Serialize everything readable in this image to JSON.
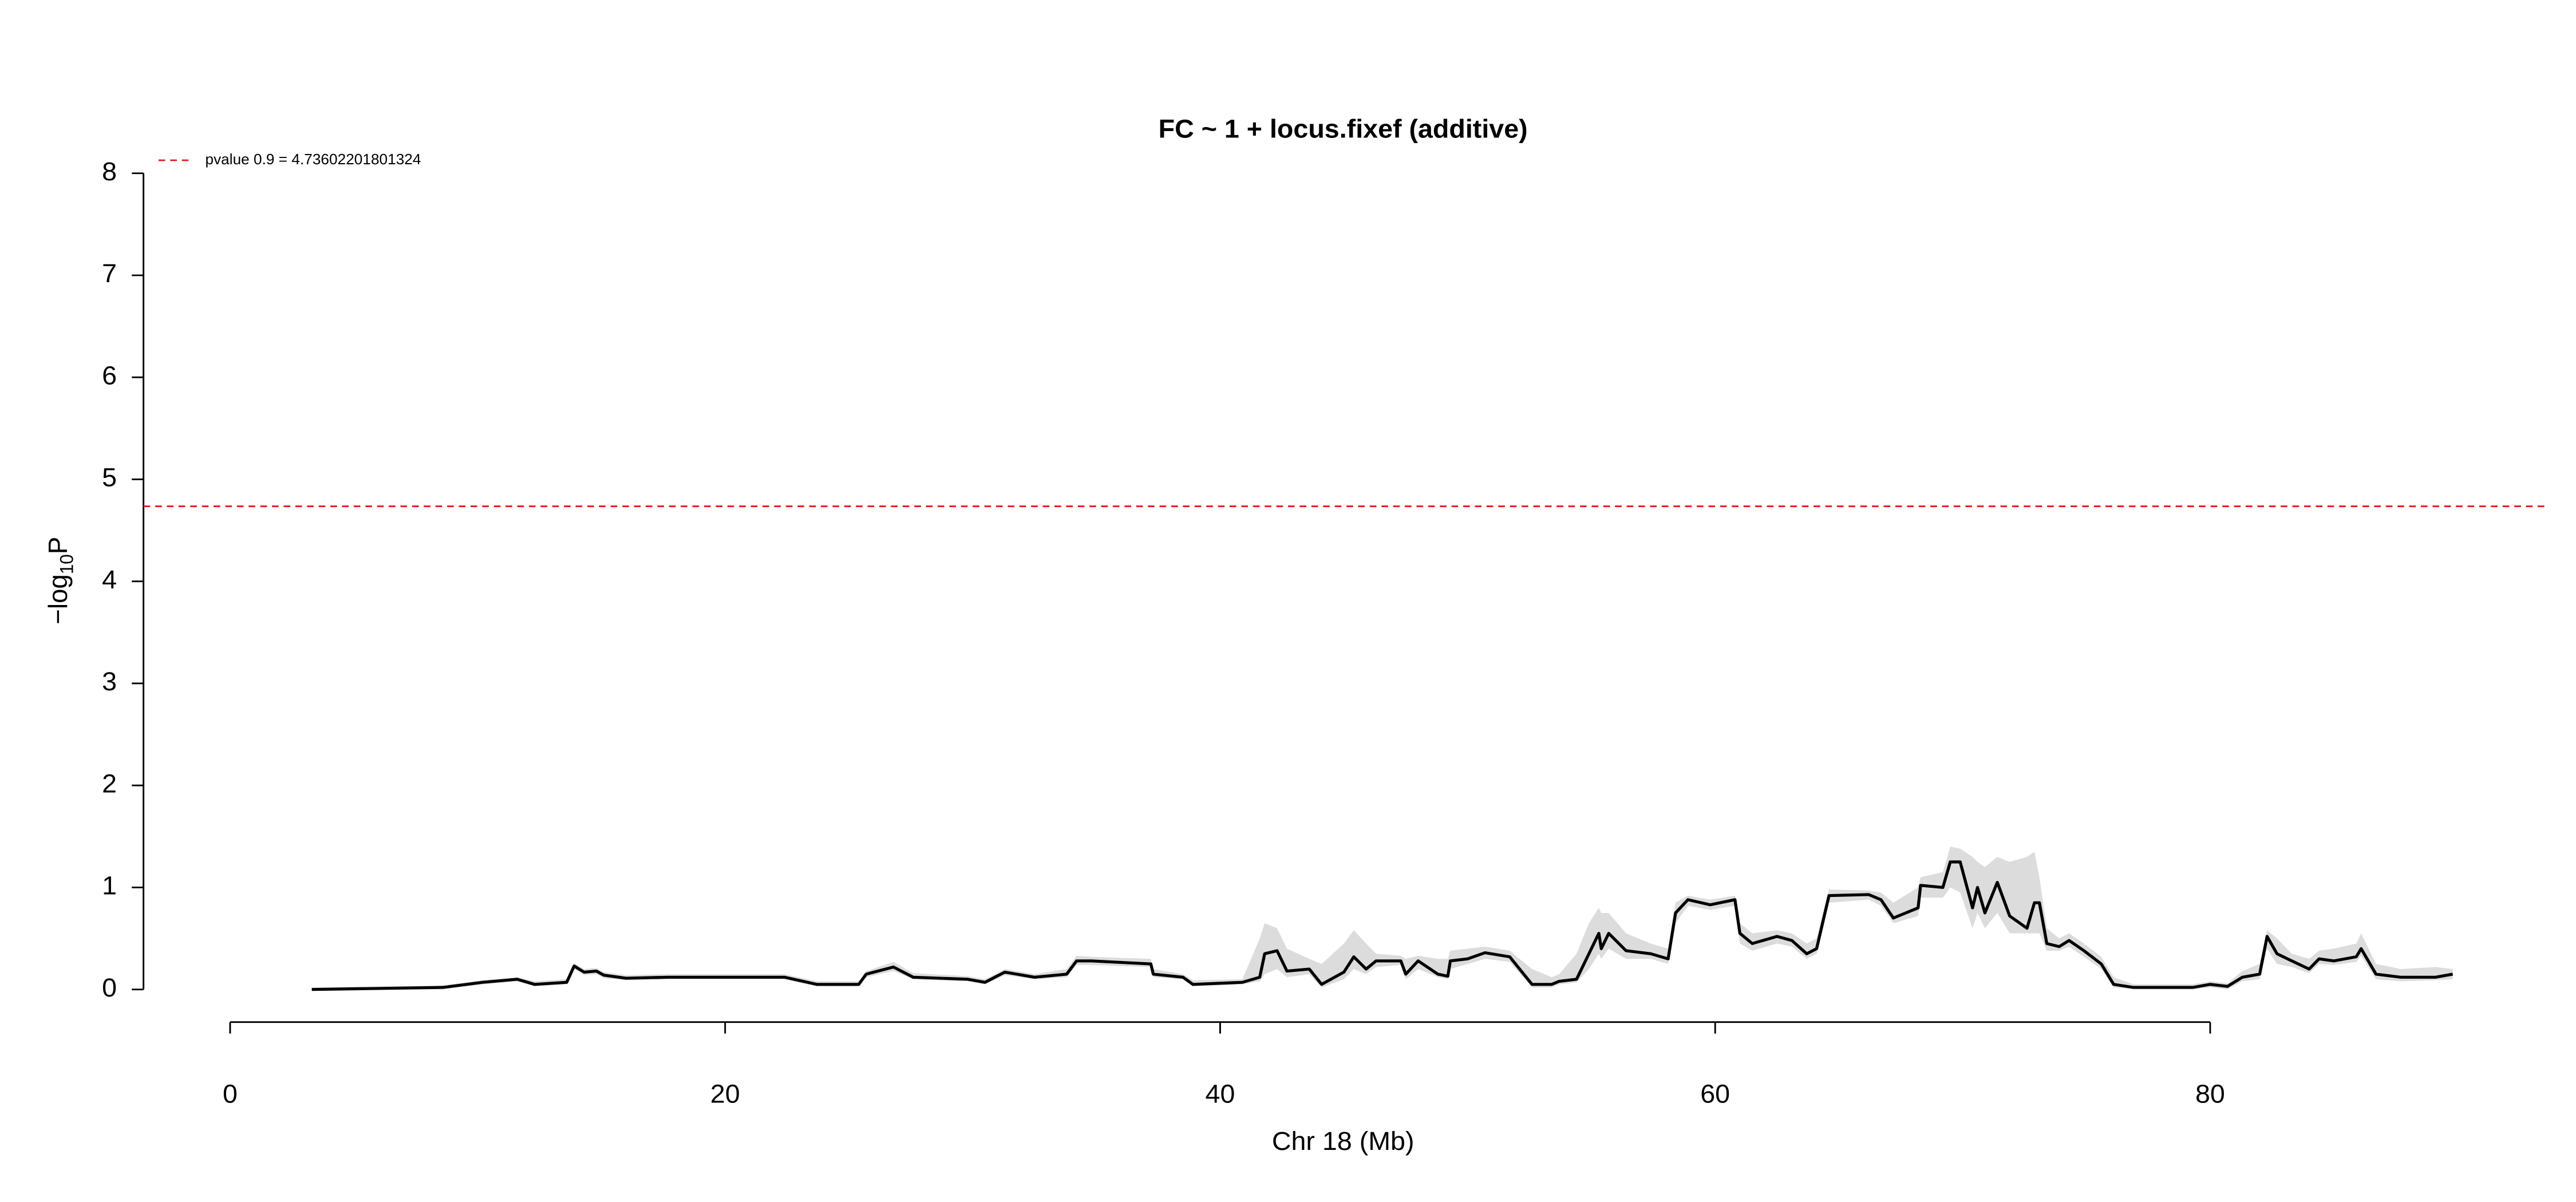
{
  "chart_data": {
    "type": "line",
    "title": "FC ~ 1 + locus.fixef (additive)",
    "x_label": "Chr 18 (Mb)",
    "y_label": {
      "text": "−log",
      "sub": "10",
      "tail": "P"
    },
    "xlim": [
      -3.5,
      93.5
    ],
    "xticks": [
      0,
      20,
      40,
      60,
      80
    ],
    "ylim": [
      -0.32,
      8.32
    ],
    "yticks": [
      0,
      1,
      2,
      3,
      4,
      5,
      6,
      7,
      8
    ],
    "threshold": {
      "label": "pvalue 0.9 = 4.73602201801324",
      "value": 4.73602201801324,
      "color": "#e41a1c"
    },
    "x": [
      3.3,
      8.6,
      10.2,
      11.6,
      12.3,
      13.6,
      13.9,
      14.3,
      14.8,
      15.1,
      16.0,
      17.7,
      22.4,
      23.7,
      25.4,
      25.7,
      26.8,
      27.6,
      29.8,
      30.5,
      31.3,
      32.5,
      33.8,
      34.2,
      34.8,
      37.2,
      37.3,
      38.5,
      38.9,
      40.9,
      41.6,
      41.8,
      42.3,
      42.7,
      43.6,
      44.1,
      45.0,
      45.4,
      45.9,
      46.3,
      47.3,
      47.5,
      48.0,
      48.8,
      49.2,
      49.3,
      50.0,
      50.7,
      51.7,
      52.6,
      53.4,
      53.7,
      54.4,
      54.9,
      55.3,
      55.4,
      55.7,
      56.4,
      57.4,
      58.1,
      58.4,
      58.9,
      59.8,
      60.8,
      61.0,
      61.5,
      62.5,
      63.1,
      63.7,
      64.1,
      64.6,
      66.2,
      66.7,
      67.2,
      68.2,
      68.3,
      69.2,
      69.5,
      69.9,
      70.4,
      70.6,
      70.9,
      71.4,
      71.9,
      72.6,
      72.9,
      73.1,
      73.4,
      73.9,
      74.3,
      74.9,
      75.6,
      76.1,
      76.9,
      79.3,
      80.0,
      80.7,
      81.3,
      82.0,
      82.3,
      82.7,
      83.3,
      84.0,
      84.4,
      85.0,
      85.9,
      86.1,
      86.7,
      87.7,
      89.1,
      89.8
    ],
    "series": [
      {
        "color": "#000000",
        "values": [
          0.0,
          0.02,
          0.07,
          0.1,
          0.05,
          0.07,
          0.23,
          0.17,
          0.18,
          0.14,
          0.11,
          0.12,
          0.12,
          0.05,
          0.05,
          0.15,
          0.22,
          0.12,
          0.1,
          0.07,
          0.17,
          0.12,
          0.15,
          0.28,
          0.28,
          0.25,
          0.15,
          0.12,
          0.05,
          0.07,
          0.12,
          0.35,
          0.38,
          0.18,
          0.2,
          0.05,
          0.17,
          0.32,
          0.2,
          0.28,
          0.28,
          0.15,
          0.28,
          0.15,
          0.13,
          0.28,
          0.3,
          0.36,
          0.32,
          0.05,
          0.05,
          0.08,
          0.1,
          0.35,
          0.55,
          0.4,
          0.55,
          0.38,
          0.35,
          0.3,
          0.75,
          0.88,
          0.83,
          0.88,
          0.55,
          0.45,
          0.52,
          0.48,
          0.35,
          0.4,
          0.92,
          0.93,
          0.88,
          0.7,
          0.8,
          1.02,
          1.0,
          1.25,
          1.25,
          0.8,
          1.0,
          0.75,
          1.05,
          0.72,
          0.6,
          0.85,
          0.85,
          0.45,
          0.42,
          0.48,
          0.38,
          0.25,
          0.05,
          0.02,
          0.02,
          0.05,
          0.03,
          0.12,
          0.15,
          0.52,
          0.35,
          0.28,
          0.2,
          0.3,
          0.28,
          0.32,
          0.4,
          0.15,
          0.12,
          0.12,
          0.15
        ]
      }
    ],
    "band": {
      "color": "#dcdcdc",
      "upper": [
        0.02,
        0.04,
        0.09,
        0.12,
        0.08,
        0.1,
        0.26,
        0.2,
        0.21,
        0.17,
        0.14,
        0.15,
        0.15,
        0.08,
        0.08,
        0.18,
        0.27,
        0.16,
        0.13,
        0.1,
        0.2,
        0.15,
        0.2,
        0.33,
        0.32,
        0.3,
        0.2,
        0.15,
        0.09,
        0.1,
        0.5,
        0.65,
        0.6,
        0.4,
        0.3,
        0.25,
        0.45,
        0.58,
        0.45,
        0.35,
        0.33,
        0.3,
        0.33,
        0.3,
        0.3,
        0.38,
        0.4,
        0.42,
        0.38,
        0.2,
        0.12,
        0.15,
        0.35,
        0.65,
        0.8,
        0.75,
        0.75,
        0.55,
        0.45,
        0.4,
        0.85,
        0.92,
        0.88,
        0.92,
        0.65,
        0.55,
        0.58,
        0.55,
        0.45,
        0.5,
        0.98,
        0.97,
        0.95,
        0.85,
        1.0,
        1.1,
        1.15,
        1.4,
        1.38,
        1.3,
        1.25,
        1.2,
        1.3,
        1.25,
        1.3,
        1.35,
        1.1,
        0.6,
        0.5,
        0.55,
        0.45,
        0.32,
        0.12,
        0.05,
        0.05,
        0.08,
        0.06,
        0.18,
        0.25,
        0.58,
        0.5,
        0.35,
        0.3,
        0.38,
        0.4,
        0.45,
        0.55,
        0.25,
        0.2,
        0.22,
        0.2
      ],
      "lower": [
        0,
        0,
        0.05,
        0.08,
        0.03,
        0.05,
        0.2,
        0.14,
        0.15,
        0.11,
        0.09,
        0.1,
        0.1,
        0.03,
        0.03,
        0.12,
        0.18,
        0.1,
        0.08,
        0.05,
        0.14,
        0.1,
        0.12,
        0.24,
        0.24,
        0.22,
        0.12,
        0.1,
        0.03,
        0.05,
        0.08,
        0.15,
        0.2,
        0.12,
        0.15,
        0.02,
        0.1,
        0.2,
        0.15,
        0.22,
        0.24,
        0.1,
        0.2,
        0.12,
        0.1,
        0.2,
        0.25,
        0.3,
        0.27,
        0.02,
        0.02,
        0.05,
        0.07,
        0.2,
        0.35,
        0.3,
        0.4,
        0.3,
        0.3,
        0.25,
        0.65,
        0.82,
        0.78,
        0.82,
        0.45,
        0.38,
        0.45,
        0.42,
        0.3,
        0.35,
        0.85,
        0.88,
        0.82,
        0.65,
        0.72,
        0.9,
        0.9,
        1.0,
        0.95,
        0.6,
        0.75,
        0.6,
        0.75,
        0.55,
        0.55,
        0.55,
        0.55,
        0.38,
        0.38,
        0.42,
        0.32,
        0.2,
        0.02,
        0,
        0,
        0.02,
        0,
        0.08,
        0.1,
        0.4,
        0.25,
        0.22,
        0.16,
        0.25,
        0.24,
        0.27,
        0.33,
        0.1,
        0.08,
        0.09,
        0.1
      ]
    }
  }
}
